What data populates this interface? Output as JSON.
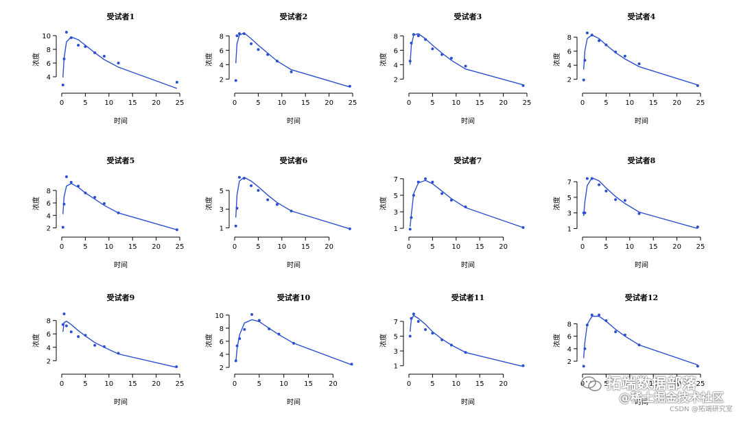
{
  "figure": {
    "xlabel": "时间",
    "ylabel": "浓度",
    "color": "#2b4fd0"
  },
  "chart_data": [
    {
      "type": "line",
      "title": "受试者1",
      "xlim": [
        0,
        25
      ],
      "ylim": [
        2.4,
        10.6
      ],
      "xticks": [
        0,
        5,
        10,
        15,
        20,
        25
      ],
      "yticks": [
        4,
        6,
        8,
        10
      ],
      "points": {
        "x": [
          0.25,
          0.5,
          1,
          2,
          3.5,
          5,
          7,
          9,
          12,
          24.4
        ],
        "y": [
          2.8,
          6.6,
          10.5,
          9.7,
          8.6,
          8.4,
          7.5,
          7.0,
          6.0,
          3.2
        ]
      },
      "fit": {
        "x": [
          0.25,
          0.5,
          1,
          2,
          3.5,
          5,
          7,
          9,
          12,
          24.4
        ],
        "y": [
          3.9,
          6.7,
          9.1,
          9.8,
          9.4,
          8.6,
          7.5,
          6.5,
          5.4,
          2.3
        ]
      }
    },
    {
      "type": "line",
      "title": "受试者2",
      "xlim": [
        0,
        25
      ],
      "ylim": [
        0.8,
        8.6
      ],
      "xticks": [
        0,
        5,
        10,
        15,
        20,
        25
      ],
      "yticks": [
        2,
        4,
        6,
        8
      ],
      "points": {
        "x": [
          0.25,
          0.5,
          1,
          2,
          3.5,
          5,
          7,
          9,
          12,
          24.4
        ],
        "y": [
          1.8,
          8.0,
          8.3,
          8.3,
          6.9,
          6.1,
          5.4,
          4.5,
          3.0,
          1.0
        ]
      },
      "fit": {
        "x": [
          0.25,
          0.5,
          1,
          2,
          3.5,
          5,
          7,
          9,
          12,
          24.4
        ],
        "y": [
          4.2,
          6.9,
          8.1,
          8.4,
          7.6,
          6.7,
          5.6,
          4.5,
          3.3,
          0.9
        ]
      }
    },
    {
      "type": "line",
      "title": "受试者3",
      "xlim": [
        0,
        25
      ],
      "ylim": [
        0.8,
        8.6
      ],
      "xticks": [
        0,
        5,
        10,
        15,
        20,
        25
      ],
      "yticks": [
        2,
        4,
        6,
        8
      ],
      "points": {
        "x": [
          0.25,
          0.5,
          1,
          2,
          3.5,
          5,
          7,
          9,
          12,
          24.2
        ],
        "y": [
          4.5,
          7.0,
          8.2,
          8.0,
          7.5,
          6.2,
          5.4,
          4.9,
          3.8,
          1.1
        ]
      },
      "fit": {
        "x": [
          0.25,
          0.5,
          1,
          2,
          3.5,
          5,
          7,
          9,
          12,
          24.2
        ],
        "y": [
          4.0,
          6.6,
          8.1,
          8.3,
          7.6,
          6.7,
          5.6,
          4.6,
          3.4,
          1.2
        ]
      }
    },
    {
      "type": "line",
      "title": "受试者4",
      "xlim": [
        0,
        25
      ],
      "ylim": [
        0.8,
        8.8
      ],
      "xticks": [
        0,
        5,
        10,
        15,
        20,
        25
      ],
      "yticks": [
        2,
        4,
        6,
        8
      ],
      "points": {
        "x": [
          0.25,
          0.5,
          1,
          2,
          3.5,
          5,
          7,
          9,
          12,
          24.4
        ],
        "y": [
          1.9,
          4.7,
          8.6,
          8.3,
          7.5,
          6.9,
          5.9,
          5.3,
          4.2,
          1.1
        ]
      },
      "fit": {
        "x": [
          0.25,
          0.5,
          1,
          2,
          3.5,
          5,
          7,
          9,
          12,
          24.4
        ],
        "y": [
          3.4,
          6.0,
          7.8,
          8.3,
          7.8,
          6.9,
          5.8,
          4.9,
          3.8,
          1.2
        ]
      }
    },
    {
      "type": "line",
      "title": "受试者5",
      "xlim": [
        0,
        25
      ],
      "ylim": [
        1.4,
        10.4
      ],
      "xticks": [
        0,
        5,
        10,
        15,
        20,
        25
      ],
      "yticks": [
        2,
        4,
        6,
        8
      ],
      "points": {
        "x": [
          0.25,
          0.5,
          1,
          2,
          3.5,
          5,
          7,
          9,
          12,
          24.4
        ],
        "y": [
          2.1,
          5.8,
          10.2,
          9.3,
          8.7,
          7.6,
          6.9,
          5.9,
          4.4,
          1.7
        ]
      },
      "fit": {
        "x": [
          0.25,
          0.5,
          1,
          2,
          3.5,
          5,
          7,
          9,
          12,
          24.4
        ],
        "y": [
          4.2,
          7.0,
          8.7,
          9.1,
          8.5,
          7.6,
          6.6,
          5.6,
          4.4,
          1.7
        ]
      }
    },
    {
      "type": "line",
      "title": "受试者6",
      "xlim": [
        0,
        25
      ],
      "ylim": [
        0.6,
        6.6
      ],
      "xticks": [
        0,
        5,
        10,
        15,
        20
      ],
      "yticks": [
        1,
        3,
        5
      ],
      "points": {
        "x": [
          0.25,
          0.5,
          1,
          2,
          3.5,
          5,
          7,
          9,
          12,
          24.4
        ],
        "y": [
          1.2,
          3.1,
          6.4,
          6.3,
          5.5,
          5.0,
          4.0,
          3.5,
          2.8,
          0.9
        ]
      },
      "fit": {
        "x": [
          0.25,
          0.5,
          1,
          2,
          3.5,
          5,
          7,
          9,
          12,
          24.4
        ],
        "y": [
          2.1,
          4.5,
          6.0,
          6.4,
          6.0,
          5.4,
          4.5,
          3.7,
          2.8,
          0.9
        ]
      }
    },
    {
      "type": "line",
      "title": "受试者7",
      "xlim": [
        0,
        25
      ],
      "ylim": [
        0.6,
        7.4
      ],
      "xticks": [
        0,
        5,
        10,
        15,
        20
      ],
      "yticks": [
        1,
        3,
        5,
        7
      ],
      "points": {
        "x": [
          0.25,
          0.5,
          1,
          2,
          3.5,
          5,
          7,
          9,
          12,
          24.2
        ],
        "y": [
          0.9,
          2.3,
          5.0,
          6.6,
          7.0,
          6.6,
          5.2,
          4.4,
          3.6,
          1.1
        ]
      },
      "fit": {
        "x": [
          0.25,
          0.5,
          1,
          2,
          3.5,
          5,
          7,
          9,
          12,
          24.2
        ],
        "y": [
          1.2,
          2.6,
          5.2,
          6.5,
          6.8,
          6.4,
          5.5,
          4.6,
          3.5,
          1.1
        ]
      }
    },
    {
      "type": "line",
      "title": "受试者8",
      "xlim": [
        0,
        25
      ],
      "ylim": [
        0.6,
        7.8
      ],
      "xticks": [
        0,
        5,
        10,
        15,
        20,
        25
      ],
      "yticks": [
        1,
        3,
        5,
        7
      ],
      "points": {
        "x": [
          0.25,
          0.5,
          1,
          2,
          3.5,
          5,
          7,
          9,
          12,
          24.4
        ],
        "y": [
          3.0,
          3.0,
          7.4,
          7.4,
          6.6,
          5.8,
          4.7,
          4.6,
          2.9,
          1.2
        ]
      },
      "fit": {
        "x": [
          0.25,
          0.5,
          1,
          2,
          3.5,
          5,
          7,
          9,
          12,
          24.4
        ],
        "y": [
          2.6,
          4.4,
          6.5,
          7.5,
          7.1,
          6.2,
          5.1,
          4.2,
          3.1,
          1.0
        ]
      }
    },
    {
      "type": "line",
      "title": "受试者9",
      "xlim": [
        0,
        25
      ],
      "ylim": [
        0.8,
        9.2
      ],
      "xticks": [
        0,
        5,
        10,
        15,
        20,
        25
      ],
      "yticks": [
        2,
        4,
        6,
        8
      ],
      "points": {
        "x": [
          0.25,
          0.5,
          1,
          2,
          3.5,
          5,
          7,
          9,
          12,
          24.3
        ],
        "y": [
          7.4,
          9.0,
          7.2,
          6.3,
          5.6,
          5.8,
          4.3,
          4.1,
          3.1,
          1.1
        ]
      },
      "fit": {
        "x": [
          0.25,
          0.5,
          1,
          2,
          3.5,
          5,
          7,
          9,
          12,
          24.3
        ],
        "y": [
          6.3,
          7.7,
          7.9,
          7.4,
          6.5,
          5.7,
          4.7,
          4.0,
          3.0,
          1.0
        ]
      }
    },
    {
      "type": "line",
      "title": "受试者10",
      "xlim": [
        0,
        24
      ],
      "ylim": [
        1.8,
        10.4
      ],
      "xticks": [
        0,
        5,
        10,
        15,
        20
      ],
      "yticks": [
        2,
        4,
        6,
        8,
        10
      ],
      "points": {
        "x": [
          0.25,
          0.5,
          1,
          2,
          3.5,
          5,
          7,
          9,
          12,
          23.8
        ],
        "y": [
          3.0,
          5.3,
          6.4,
          7.8,
          10.1,
          9.2,
          7.9,
          7.1,
          5.7,
          2.5
        ]
      },
      "fit": {
        "x": [
          0.25,
          0.5,
          1,
          2,
          3.5,
          5,
          7,
          9,
          12,
          23.8
        ],
        "y": [
          2.9,
          4.9,
          7.0,
          8.8,
          9.3,
          9.0,
          8.0,
          7.0,
          5.7,
          2.4
        ]
      }
    },
    {
      "type": "line",
      "title": "受试者11",
      "xlim": [
        0,
        25
      ],
      "ylim": [
        0.6,
        8.2
      ],
      "xticks": [
        0,
        5,
        10,
        15,
        20
      ],
      "yticks": [
        1,
        3,
        5,
        7
      ],
      "points": {
        "x": [
          0.25,
          0.5,
          1,
          2,
          3.5,
          5,
          7,
          9,
          12,
          24.2
        ],
        "y": [
          5.0,
          7.4,
          8.0,
          7.0,
          5.9,
          5.4,
          4.5,
          3.8,
          2.8,
          1.0
        ]
      },
      "fit": {
        "x": [
          0.25,
          0.5,
          1,
          2,
          3.5,
          5,
          7,
          9,
          12,
          24.2
        ],
        "y": [
          5.6,
          7.2,
          7.8,
          7.4,
          6.6,
          5.6,
          4.6,
          3.8,
          2.8,
          0.9
        ]
      }
    },
    {
      "type": "line",
      "title": "受试者12",
      "xlim": [
        0,
        25
      ],
      "ylim": [
        0.8,
        9.8
      ],
      "xticks": [
        0,
        5,
        10,
        15,
        20,
        25
      ],
      "yticks": [
        2,
        4,
        6,
        8
      ],
      "points": {
        "x": [
          0.25,
          0.5,
          1,
          2,
          3.5,
          5,
          7,
          9,
          12,
          24.4
        ],
        "y": [
          1.2,
          4.0,
          7.8,
          9.4,
          9.4,
          8.5,
          6.7,
          6.2,
          4.6,
          1.2
        ]
      },
      "fit": {
        "x": [
          0.25,
          0.5,
          1,
          2,
          3.5,
          5,
          7,
          9,
          12,
          24.4
        ],
        "y": [
          2.5,
          5.0,
          7.9,
          9.2,
          9.2,
          8.4,
          7.1,
          6.0,
          4.6,
          1.4
        ]
      }
    }
  ],
  "watermark": {
    "line1": "拓端数据部落",
    "line2": "@稀土掘金技术社区",
    "line3": "CSDN @拓端研究室"
  }
}
